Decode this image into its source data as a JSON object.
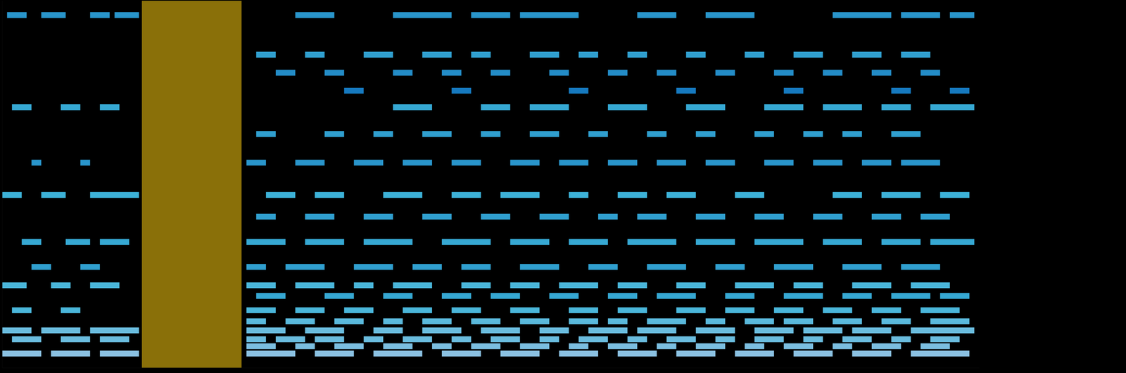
{
  "chart_data": {
    "type": "heatmap",
    "tick_labels": false,
    "xlim": [
      0,
      100
    ],
    "ylim": [
      0,
      100
    ],
    "cell_height": 1.6,
    "color_range": [
      0,
      1
    ],
    "band": {
      "start": 14.3,
      "end": 24.5,
      "color": "#b8960c"
    },
    "rows": [
      {
        "y": 96.1,
        "level": 0.5,
        "spans": [
          [
            0.5,
            2.5
          ],
          [
            4,
            6.5
          ],
          [
            9,
            11
          ],
          [
            11.5,
            14
          ],
          [
            30,
            34
          ],
          [
            40,
            46
          ],
          [
            48,
            52
          ],
          [
            53,
            59
          ],
          [
            65,
            69
          ],
          [
            72,
            77
          ],
          [
            85,
            91
          ],
          [
            92,
            96
          ],
          [
            97,
            99.5
          ]
        ]
      },
      {
        "y": 85.3,
        "level": 0.55,
        "spans": [
          [
            26,
            28
          ],
          [
            31,
            33
          ],
          [
            37,
            40
          ],
          [
            43,
            46
          ],
          [
            48,
            50
          ],
          [
            54,
            57
          ],
          [
            59,
            61
          ],
          [
            64,
            66
          ],
          [
            70,
            72
          ],
          [
            76,
            78
          ],
          [
            81,
            84
          ],
          [
            87,
            90
          ],
          [
            92,
            95
          ]
        ]
      },
      {
        "y": 80.4,
        "level": 0.45,
        "spans": [
          [
            28,
            30
          ],
          [
            33,
            35
          ],
          [
            40,
            42
          ],
          [
            45,
            47
          ],
          [
            50,
            52
          ],
          [
            56,
            58
          ],
          [
            62,
            64
          ],
          [
            67,
            69
          ],
          [
            73,
            75
          ],
          [
            79,
            81
          ],
          [
            84,
            86
          ],
          [
            89,
            91
          ],
          [
            94,
            96
          ]
        ]
      },
      {
        "y": 75.5,
        "level": 0.35,
        "spans": [
          [
            35,
            37
          ],
          [
            46,
            48
          ],
          [
            58,
            60
          ],
          [
            69,
            71
          ],
          [
            80,
            82
          ],
          [
            91,
            93
          ],
          [
            97,
            99
          ]
        ]
      },
      {
        "y": 71.0,
        "level": 0.6,
        "spans": [
          [
            1,
            3
          ],
          [
            6,
            8
          ],
          [
            10,
            12
          ],
          [
            40,
            44
          ],
          [
            49,
            52
          ],
          [
            54,
            58
          ],
          [
            62,
            66
          ],
          [
            70,
            74
          ],
          [
            78,
            82
          ],
          [
            84,
            88
          ],
          [
            90,
            93
          ],
          [
            95,
            99.5
          ]
        ]
      },
      {
        "y": 63.7,
        "level": 0.55,
        "spans": [
          [
            26,
            28
          ],
          [
            33,
            35
          ],
          [
            38,
            40
          ],
          [
            43,
            46
          ],
          [
            49,
            51
          ],
          [
            54,
            57
          ],
          [
            60,
            62
          ],
          [
            66,
            68
          ],
          [
            71,
            73
          ],
          [
            77,
            79
          ],
          [
            82,
            84
          ],
          [
            86,
            88
          ],
          [
            91,
            94
          ]
        ]
      },
      {
        "y": 55.9,
        "level": 0.5,
        "spans": [
          [
            3,
            4
          ],
          [
            8,
            9
          ],
          [
            25,
            27
          ],
          [
            30,
            33
          ],
          [
            36,
            39
          ],
          [
            41,
            44
          ],
          [
            46,
            49
          ],
          [
            52,
            55
          ],
          [
            57,
            60
          ],
          [
            62,
            65
          ],
          [
            67,
            70
          ],
          [
            72,
            75
          ],
          [
            78,
            81
          ],
          [
            83,
            86
          ],
          [
            88,
            91
          ],
          [
            92,
            96
          ]
        ]
      },
      {
        "y": 47.1,
        "level": 0.65,
        "spans": [
          [
            0,
            2
          ],
          [
            4,
            6.5
          ],
          [
            9,
            14
          ],
          [
            27,
            30
          ],
          [
            32,
            35
          ],
          [
            39,
            43
          ],
          [
            46,
            49
          ],
          [
            51,
            55
          ],
          [
            58,
            60
          ],
          [
            63,
            66
          ],
          [
            68,
            71
          ],
          [
            75,
            78
          ],
          [
            85,
            88
          ],
          [
            90,
            94
          ],
          [
            96,
            99
          ]
        ]
      },
      {
        "y": 41.2,
        "level": 0.55,
        "spans": [
          [
            26,
            28
          ],
          [
            31,
            34
          ],
          [
            37,
            40
          ],
          [
            43,
            46
          ],
          [
            49,
            52
          ],
          [
            55,
            58
          ],
          [
            61,
            63
          ],
          [
            65,
            68
          ],
          [
            71,
            74
          ],
          [
            77,
            80
          ],
          [
            83,
            86
          ],
          [
            89,
            92
          ],
          [
            94,
            97
          ]
        ]
      },
      {
        "y": 34.3,
        "level": 0.6,
        "spans": [
          [
            2,
            4
          ],
          [
            6.5,
            9
          ],
          [
            10,
            13
          ],
          [
            25,
            29
          ],
          [
            31,
            35
          ],
          [
            37,
            42
          ],
          [
            45,
            50
          ],
          [
            52,
            56
          ],
          [
            58,
            62
          ],
          [
            64,
            69
          ],
          [
            71,
            75
          ],
          [
            77,
            82
          ],
          [
            84,
            88
          ],
          [
            90,
            94
          ],
          [
            95,
            99.5
          ]
        ]
      },
      {
        "y": 27.5,
        "level": 0.55,
        "spans": [
          [
            3,
            5
          ],
          [
            8,
            10
          ],
          [
            25,
            27
          ],
          [
            29,
            33
          ],
          [
            36,
            40
          ],
          [
            42,
            45
          ],
          [
            47,
            50
          ],
          [
            53,
            57
          ],
          [
            60,
            63
          ],
          [
            66,
            70
          ],
          [
            73,
            76
          ],
          [
            79,
            83
          ],
          [
            86,
            90
          ],
          [
            92,
            96
          ]
        ]
      },
      {
        "y": 22.5,
        "level": 0.7,
        "spans": [
          [
            0,
            2.5
          ],
          [
            5,
            7
          ],
          [
            9,
            12
          ],
          [
            25,
            28
          ],
          [
            30,
            34
          ],
          [
            36,
            38
          ],
          [
            40,
            44
          ],
          [
            47,
            50
          ],
          [
            52,
            55
          ],
          [
            57,
            61
          ],
          [
            63,
            66
          ],
          [
            69,
            72
          ],
          [
            75,
            79
          ],
          [
            81,
            84
          ],
          [
            87,
            91
          ],
          [
            93,
            97
          ]
        ]
      },
      {
        "y": 19.6,
        "level": 0.6,
        "spans": [
          [
            26,
            29
          ],
          [
            33,
            36
          ],
          [
            39,
            42
          ],
          [
            45,
            48
          ],
          [
            50,
            53
          ],
          [
            56,
            59
          ],
          [
            62,
            65
          ],
          [
            67,
            71
          ],
          [
            74,
            77
          ],
          [
            80,
            84
          ],
          [
            86,
            89
          ],
          [
            91,
            95
          ],
          [
            96,
            99
          ]
        ]
      },
      {
        "y": 15.7,
        "level": 0.7,
        "spans": [
          [
            1,
            3
          ],
          [
            6,
            8
          ],
          [
            25,
            28
          ],
          [
            30,
            33
          ],
          [
            35,
            38
          ],
          [
            41,
            44
          ],
          [
            46,
            49
          ],
          [
            52,
            55
          ],
          [
            58,
            61
          ],
          [
            63,
            66
          ],
          [
            69,
            72
          ],
          [
            74,
            77
          ],
          [
            79,
            82
          ],
          [
            84,
            87
          ],
          [
            89,
            92
          ],
          [
            94,
            98
          ]
        ]
      },
      {
        "y": 12.7,
        "level": 0.75,
        "spans": [
          [
            25,
            27
          ],
          [
            29,
            32
          ],
          [
            34,
            37
          ],
          [
            39,
            41
          ],
          [
            43,
            46
          ],
          [
            48,
            51
          ],
          [
            53,
            56
          ],
          [
            58,
            61
          ],
          [
            62,
            64
          ],
          [
            66,
            70
          ],
          [
            72,
            74
          ],
          [
            76,
            79
          ],
          [
            80,
            83
          ],
          [
            85,
            88
          ],
          [
            90,
            93
          ],
          [
            95,
            99
          ]
        ]
      },
      {
        "y": 10.2,
        "level": 0.8,
        "spans": [
          [
            0,
            3
          ],
          [
            4,
            8
          ],
          [
            9,
            14
          ],
          [
            25,
            29
          ],
          [
            31,
            35
          ],
          [
            38,
            41
          ],
          [
            43,
            47
          ],
          [
            49,
            53
          ],
          [
            55,
            58
          ],
          [
            60,
            64
          ],
          [
            65,
            69
          ],
          [
            71,
            75
          ],
          [
            77,
            81
          ],
          [
            82,
            86
          ],
          [
            87,
            91
          ],
          [
            93,
            99.5
          ]
        ]
      },
      {
        "y": 7.8,
        "level": 0.8,
        "spans": [
          [
            1,
            4
          ],
          [
            6,
            9
          ],
          [
            10,
            13
          ],
          [
            25,
            27
          ],
          [
            28,
            31
          ],
          [
            32,
            35
          ],
          [
            37,
            39
          ],
          [
            41,
            44
          ],
          [
            46,
            48
          ],
          [
            50,
            53
          ],
          [
            55,
            57
          ],
          [
            59,
            62
          ],
          [
            64,
            66
          ],
          [
            68,
            71
          ],
          [
            73,
            75
          ],
          [
            77,
            80
          ],
          [
            82,
            84
          ],
          [
            86,
            89
          ],
          [
            91,
            93
          ],
          [
            95,
            98
          ]
        ]
      },
      {
        "y": 5.9,
        "level": 0.85,
        "spans": [
          [
            25,
            28
          ],
          [
            30,
            32
          ],
          [
            34,
            37
          ],
          [
            39,
            42
          ],
          [
            44,
            46
          ],
          [
            48,
            51
          ],
          [
            53,
            56
          ],
          [
            58,
            60
          ],
          [
            62,
            65
          ],
          [
            67,
            69
          ],
          [
            71,
            74
          ],
          [
            76,
            78
          ],
          [
            80,
            83
          ],
          [
            85,
            87
          ],
          [
            89,
            92
          ],
          [
            94,
            97
          ]
        ]
      },
      {
        "y": 3.9,
        "level": 0.9,
        "spans": [
          [
            0,
            4
          ],
          [
            5,
            9
          ],
          [
            10,
            14
          ],
          [
            25,
            30
          ],
          [
            32,
            36
          ],
          [
            38,
            43
          ],
          [
            45,
            49
          ],
          [
            51,
            55
          ],
          [
            57,
            61
          ],
          [
            63,
            67
          ],
          [
            69,
            73
          ],
          [
            75,
            79
          ],
          [
            81,
            85
          ],
          [
            87,
            91
          ],
          [
            93,
            99
          ]
        ]
      }
    ]
  }
}
